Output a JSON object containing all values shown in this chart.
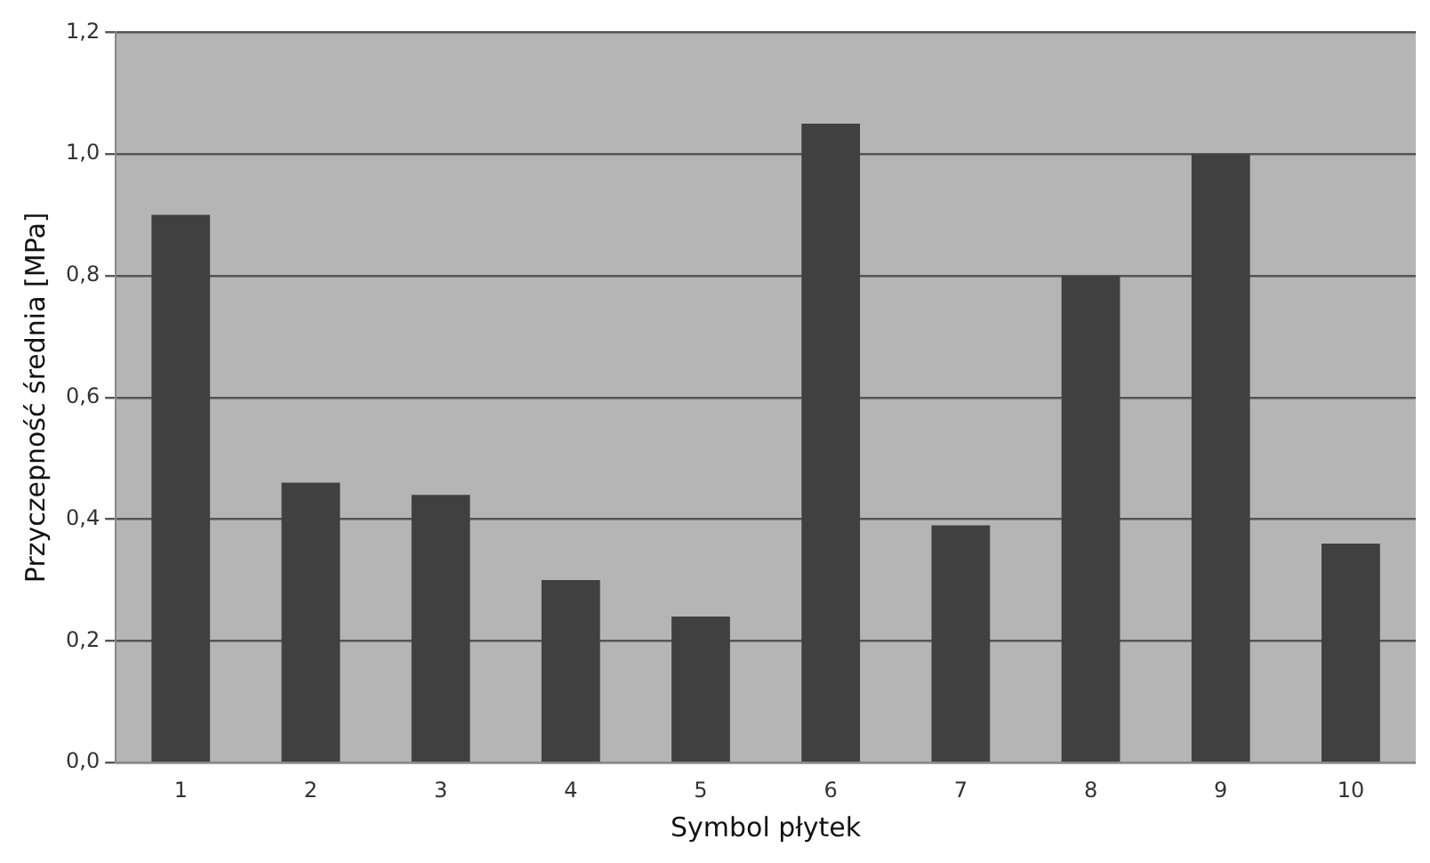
{
  "chart_data": {
    "type": "bar",
    "xlabel": "Symbol płytek",
    "ylabel": "Przyczepność średnia [MPa]",
    "categories": [
      "1",
      "2",
      "3",
      "4",
      "5",
      "6",
      "7",
      "8",
      "9",
      "10"
    ],
    "values": [
      0.9,
      0.46,
      0.44,
      0.3,
      0.24,
      1.05,
      0.39,
      0.8,
      1.0,
      0.36
    ],
    "color": "#404040",
    "ylim": [
      0,
      1.2
    ],
    "yticks": [
      {
        "value": 0,
        "label": "0,0"
      },
      {
        "value": 0.2,
        "label": "0,2"
      },
      {
        "value": 0.4,
        "label": "0,4"
      },
      {
        "value": 0.6,
        "label": "0,6"
      },
      {
        "value": 0.8,
        "label": "0,8"
      },
      {
        "value": 1.0,
        "label": "1,0"
      },
      {
        "value": 1.2,
        "label": "1,2"
      }
    ],
    "grid": "y",
    "legend": false
  }
}
